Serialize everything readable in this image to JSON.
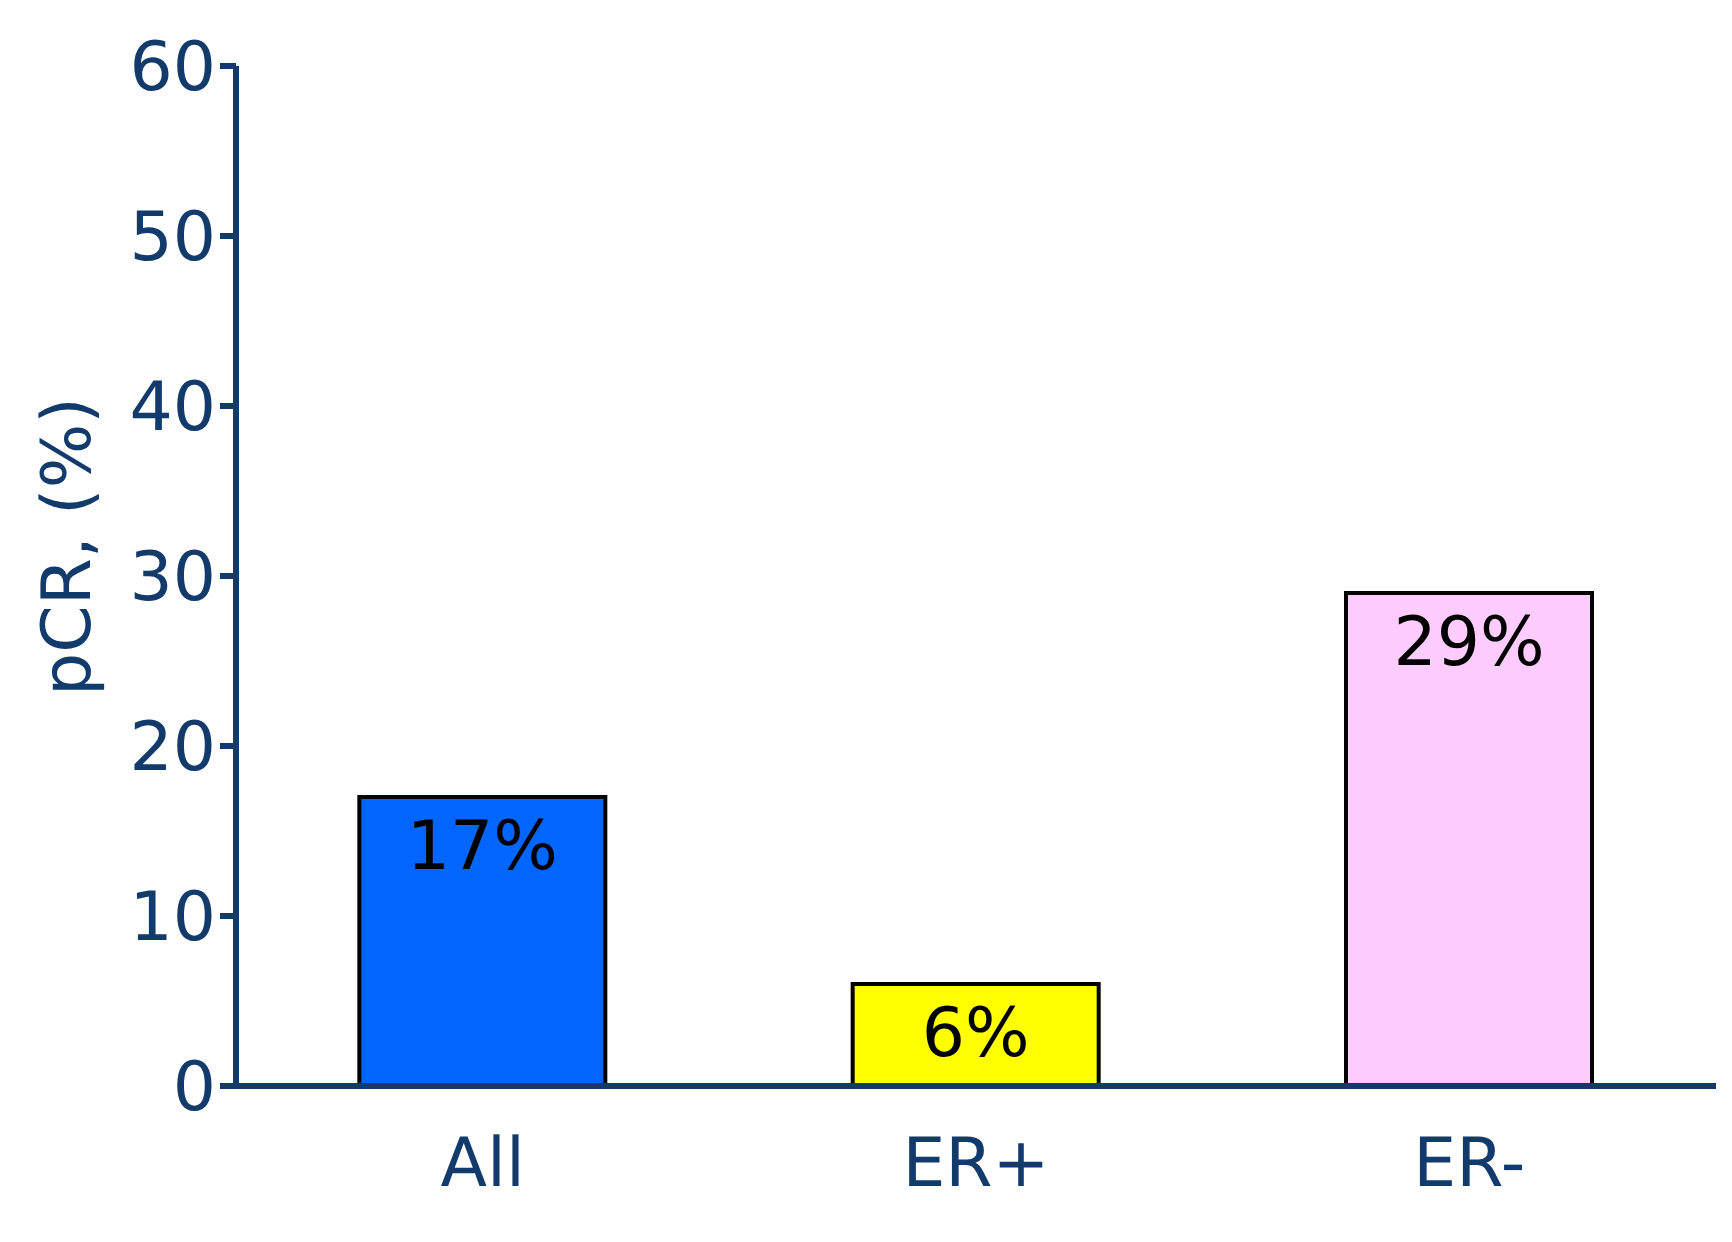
{
  "chart_data": {
    "type": "bar",
    "ylabel": "pCR, (%)",
    "categories": [
      "All",
      "ER+",
      "ER-"
    ],
    "values": [
      17,
      6,
      29
    ],
    "colors": [
      "#0066ff",
      "#ffff00",
      "#ffccff"
    ],
    "value_labels": [
      "17%",
      "6%",
      "29%"
    ],
    "ylim": [
      0,
      60
    ],
    "yticks": [
      0,
      10,
      20,
      30,
      40,
      50,
      60
    ],
    "grid": false
  }
}
